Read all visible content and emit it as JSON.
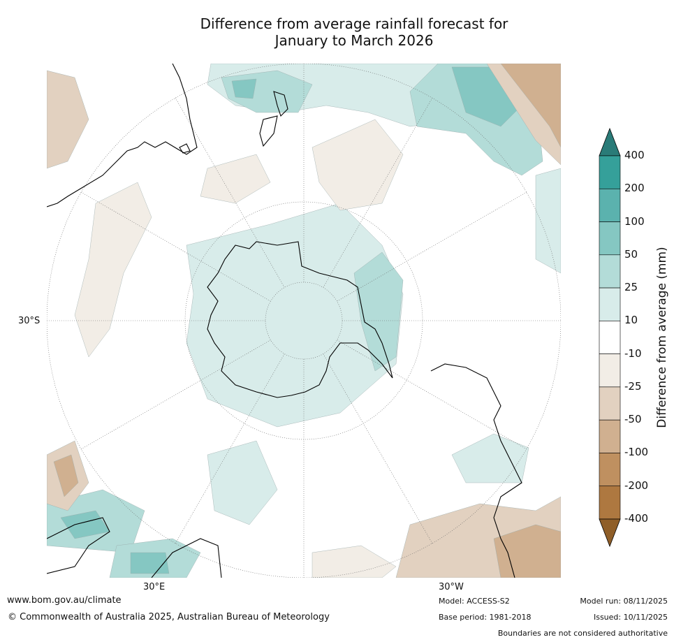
{
  "title_line1": "Difference from average rainfall forecast for",
  "title_line2": "January to March 2026",
  "axis_labels": {
    "left": "30°S",
    "bottom_left": "30°E",
    "bottom_right": "30°W"
  },
  "colorbar": {
    "title": "Difference from average (mm)",
    "tick_labels": [
      "400",
      "200",
      "100",
      "50",
      "25",
      "10",
      "-10",
      "-25",
      "-50",
      "-100",
      "-200",
      "-400"
    ],
    "colors": [
      "#2a7b78",
      "#35a09a",
      "#5bb2ae",
      "#85c7c2",
      "#b3dcd8",
      "#d8ecea",
      "#ffffff",
      "#f2ede6",
      "#e2d1c0",
      "#d0b090",
      "#bf9060",
      "#ae7840",
      "#8f5e28"
    ]
  },
  "footer": {
    "url": "www.bom.gov.au/climate",
    "copyright": "© Commonwealth of Australia 2025, Australian Bureau of Meteorology",
    "model": "Model: ACCESS-S2",
    "base_period": "Base period: 1981-2018",
    "model_run": "Model run: 08/11/2025",
    "issued": "Issued: 10/11/2025",
    "disclaimer": "Boundaries are not considered authoritative"
  }
}
